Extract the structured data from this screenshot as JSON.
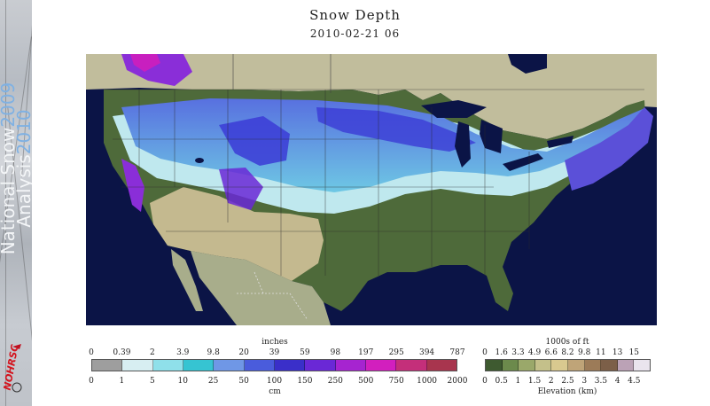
{
  "banner": {
    "title_main": "National Snow",
    "title_year1": "2009",
    "title_sub": "Analysis",
    "title_year2": "2010",
    "logo_text": "NOHRSC"
  },
  "header": {
    "title": "Snow Depth",
    "date": "2010-02-21 06"
  },
  "map": {
    "colors": {
      "ocean": "#0b1446",
      "lake": "#0b1446",
      "land_green": "#4e6a3a",
      "land_tan": "#c4b98f",
      "land_bare": "#a8ad8b",
      "canada": "#c1bd9c",
      "snow_light": "#bfe8ee",
      "snow_cyan": "#66d4e4",
      "snow_blue": "#5b84e0",
      "snow_deep": "#3b3bd6",
      "snow_purple": "#8a2ed8",
      "snow_magenta": "#c81fbf"
    }
  },
  "legend_snow": {
    "unit_top": "inches",
    "top_ticks": [
      "0",
      "0.39",
      "2",
      "3.9",
      "9.8",
      "20",
      "39",
      "59",
      "98",
      "197",
      "295",
      "394",
      "787"
    ],
    "unit_bottom": "cm",
    "bottom_ticks": [
      "0",
      "1",
      "5",
      "10",
      "25",
      "50",
      "100",
      "150",
      "250",
      "500",
      "750",
      "1000",
      "2000"
    ],
    "colors": [
      "#9e9e9e",
      "#d7eef2",
      "#8fe0ea",
      "#36c4d2",
      "#6f97e6",
      "#4a5cdc",
      "#3a2fc9",
      "#6a28d6",
      "#a624d0",
      "#d21fbe",
      "#c42f7a",
      "#a8354e"
    ]
  },
  "legend_elev": {
    "unit_top": "1000s of ft",
    "top_ticks": [
      "0",
      "1.6",
      "3.3",
      "4.9",
      "6.6",
      "8.2",
      "9.8",
      "11",
      "13",
      "15"
    ],
    "unit_bottom": "Elevation (km)",
    "bottom_ticks": [
      "0",
      "0.5",
      "1",
      "1.5",
      "2",
      "2.5",
      "3",
      "3.5",
      "4",
      "4.5"
    ],
    "colors": [
      "#3e5a30",
      "#6c8a4c",
      "#9aa86a",
      "#c4c08a",
      "#d9c98f",
      "#bfa478",
      "#9c7b58",
      "#7c5f48",
      "#bba2b6",
      "#eae4ee"
    ]
  }
}
